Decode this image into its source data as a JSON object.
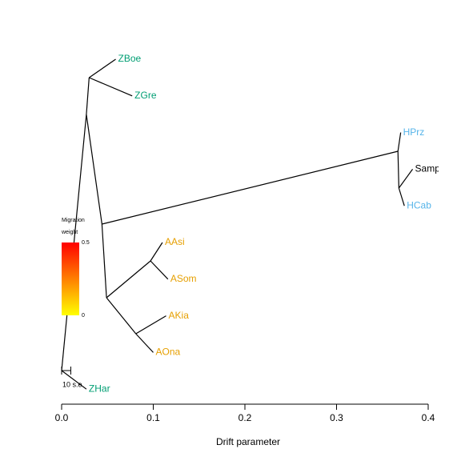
{
  "chart_data": {
    "type": "tree",
    "x_label": "Drift parameter",
    "xlim": [
      0,
      0.4
    ],
    "xticks": [
      {
        "value": 0,
        "label": "0.0"
      },
      0.1,
      0.2,
      0.3,
      0.4
    ],
    "tree": {
      "x": 0,
      "children": [
        {
          "x": 0.027,
          "children": [
            {
              "x": 0.03,
              "children": [
                {
                  "name": "ZBoe",
                  "x": 0.059,
                  "color": "#009E73"
                },
                {
                  "name": "ZGre",
                  "x": 0.077,
                  "color": "#009E73"
                }
              ]
            },
            {
              "x": 0.044,
              "children": [
                {
                  "x": 0.367,
                  "children": [
                    {
                      "name": "HPrz",
                      "x": 0.37,
                      "color": "#56B4E9"
                    },
                    {
                      "x": 0.368,
                      "children": [
                        {
                          "name": "Samp",
                          "x": 0.383,
                          "color": "#000000"
                        },
                        {
                          "name": "HCab",
                          "x": 0.374,
                          "color": "#56B4E9"
                        }
                      ]
                    }
                  ]
                },
                {
                  "x": 0.049,
                  "children": [
                    {
                      "x": 0.097,
                      "children": [
                        {
                          "name": "AAsi",
                          "x": 0.11,
                          "color": "#E69F00"
                        },
                        {
                          "name": "ASom",
                          "x": 0.116,
                          "color": "#E69F00"
                        }
                      ]
                    },
                    {
                      "x": 0.081,
                      "children": [
                        {
                          "name": "AKia",
                          "x": 0.114,
                          "color": "#E69F00"
                        },
                        {
                          "name": "AOna",
                          "x": 0.1,
                          "color": "#E69F00"
                        }
                      ]
                    }
                  ]
                }
              ]
            }
          ]
        },
        {
          "name": "ZHar",
          "x": 0.027,
          "color": "#009E73"
        }
      ]
    },
    "legend": {
      "title_lines": [
        "Migration",
        "weight"
      ],
      "ticks": [
        0.5,
        0
      ],
      "colors": [
        "#FF0000",
        "#FFFF00"
      ]
    },
    "scale_bar": {
      "label": "10 s.e.",
      "length": 0.01
    }
  }
}
